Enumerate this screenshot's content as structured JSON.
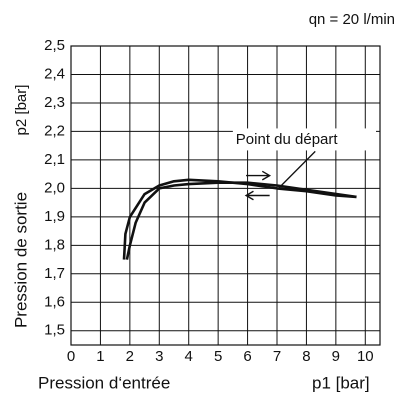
{
  "chart_data": {
    "type": "line",
    "annotations": [
      "qn = 20 l/min",
      "Point du départ"
    ],
    "ylabel": "Pression de sortie",
    "ylabel_unit": "p2 [bar]",
    "xlabel": "Pression d‘entrée",
    "xlabel_unit": "p1 [bar]",
    "xlim": [
      0,
      10.5
    ],
    "ylim": [
      1.45,
      2.5
    ],
    "xticks": [
      0,
      1,
      2,
      3,
      4,
      5,
      6,
      7,
      8,
      9,
      10
    ],
    "yticks": [
      {
        "value": 1.5,
        "label": "1,5"
      },
      {
        "value": 1.6,
        "label": "1,6"
      },
      {
        "value": 1.7,
        "label": "1,7"
      },
      {
        "value": 1.8,
        "label": "1,8"
      },
      {
        "value": 1.9,
        "label": "1,9"
      },
      {
        "value": 2.0,
        "label": "2,0"
      },
      {
        "value": 2.1,
        "label": "2,1"
      },
      {
        "value": 2.2,
        "label": "2,2"
      },
      {
        "value": 2.3,
        "label": "2,3"
      },
      {
        "value": 2.4,
        "label": "2,4"
      },
      {
        "value": 2.5,
        "label": "2,5"
      }
    ],
    "grid": true,
    "series": [
      {
        "color": "#111111",
        "x": [
          1.8,
          1.85,
          2.0,
          2.5,
          3.0,
          3.5,
          4.0,
          5.0,
          6.0,
          7.0,
          8.0,
          9.0,
          9.7
        ],
        "values": [
          1.75,
          1.84,
          1.9,
          1.98,
          2.01,
          2.025,
          2.03,
          2.025,
          2.015,
          2.0,
          1.99,
          1.975,
          1.97
        ]
      },
      {
        "color": "#111111",
        "x": [
          9.7,
          8.0,
          7.0,
          6.0,
          5.0,
          4.0,
          3.5,
          3.0,
          2.5,
          2.2,
          2.0,
          1.9
        ],
        "values": [
          1.97,
          1.995,
          2.01,
          2.02,
          2.02,
          2.015,
          2.01,
          2.0,
          1.95,
          1.88,
          1.8,
          1.75
        ]
      }
    ]
  }
}
